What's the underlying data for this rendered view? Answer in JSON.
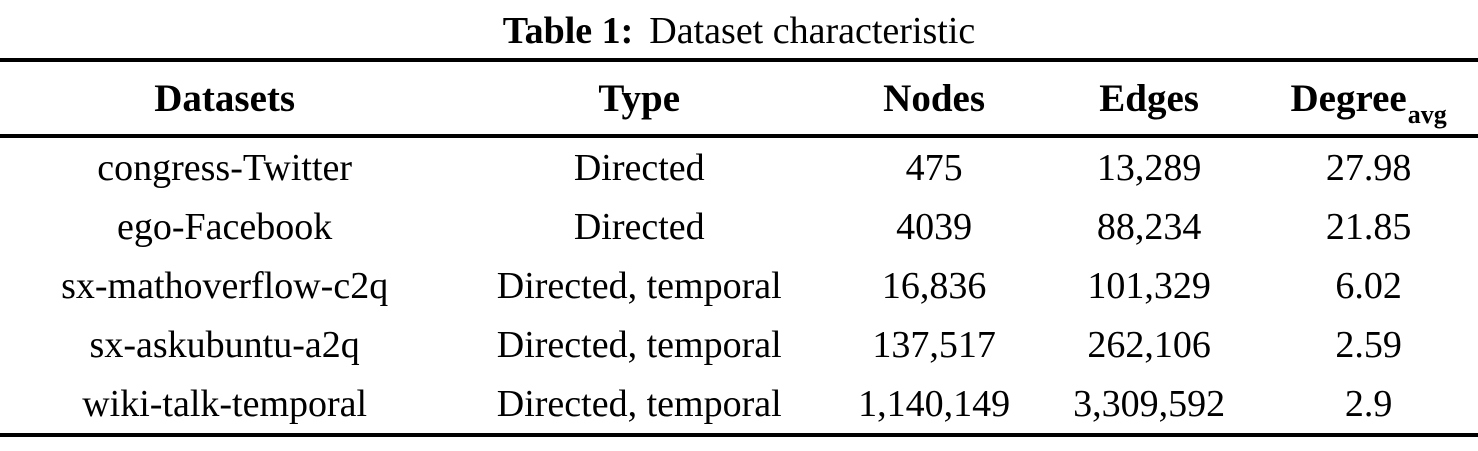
{
  "caption": {
    "label": "Table 1:",
    "text": "Dataset characteristic"
  },
  "table": {
    "columns": [
      "Datasets",
      "Type",
      "Nodes",
      "Edges",
      "Degree"
    ],
    "degree_subscript": "avg",
    "rows": [
      {
        "dataset": "congress-Twitter",
        "type": "Directed",
        "nodes": "475",
        "edges": "13,289",
        "degree_avg": "27.98"
      },
      {
        "dataset": "ego-Facebook",
        "type": "Directed",
        "nodes": "4039",
        "edges": "88,234",
        "degree_avg": "21.85"
      },
      {
        "dataset": "sx-mathoverflow-c2q",
        "type": "Directed, temporal",
        "nodes": "16,836",
        "edges": "101,329",
        "degree_avg": "6.02"
      },
      {
        "dataset": "sx-askubuntu-a2q",
        "type": "Directed, temporal",
        "nodes": "137,517",
        "edges": "262,106",
        "degree_avg": "2.59"
      },
      {
        "dataset": "wiki-talk-temporal",
        "type": "Directed, temporal",
        "nodes": "1,140,149",
        "edges": "3,309,592",
        "degree_avg": "2.9"
      }
    ]
  },
  "colors": {
    "text": "#000000",
    "background": "#ffffff",
    "rule": "#000000"
  }
}
